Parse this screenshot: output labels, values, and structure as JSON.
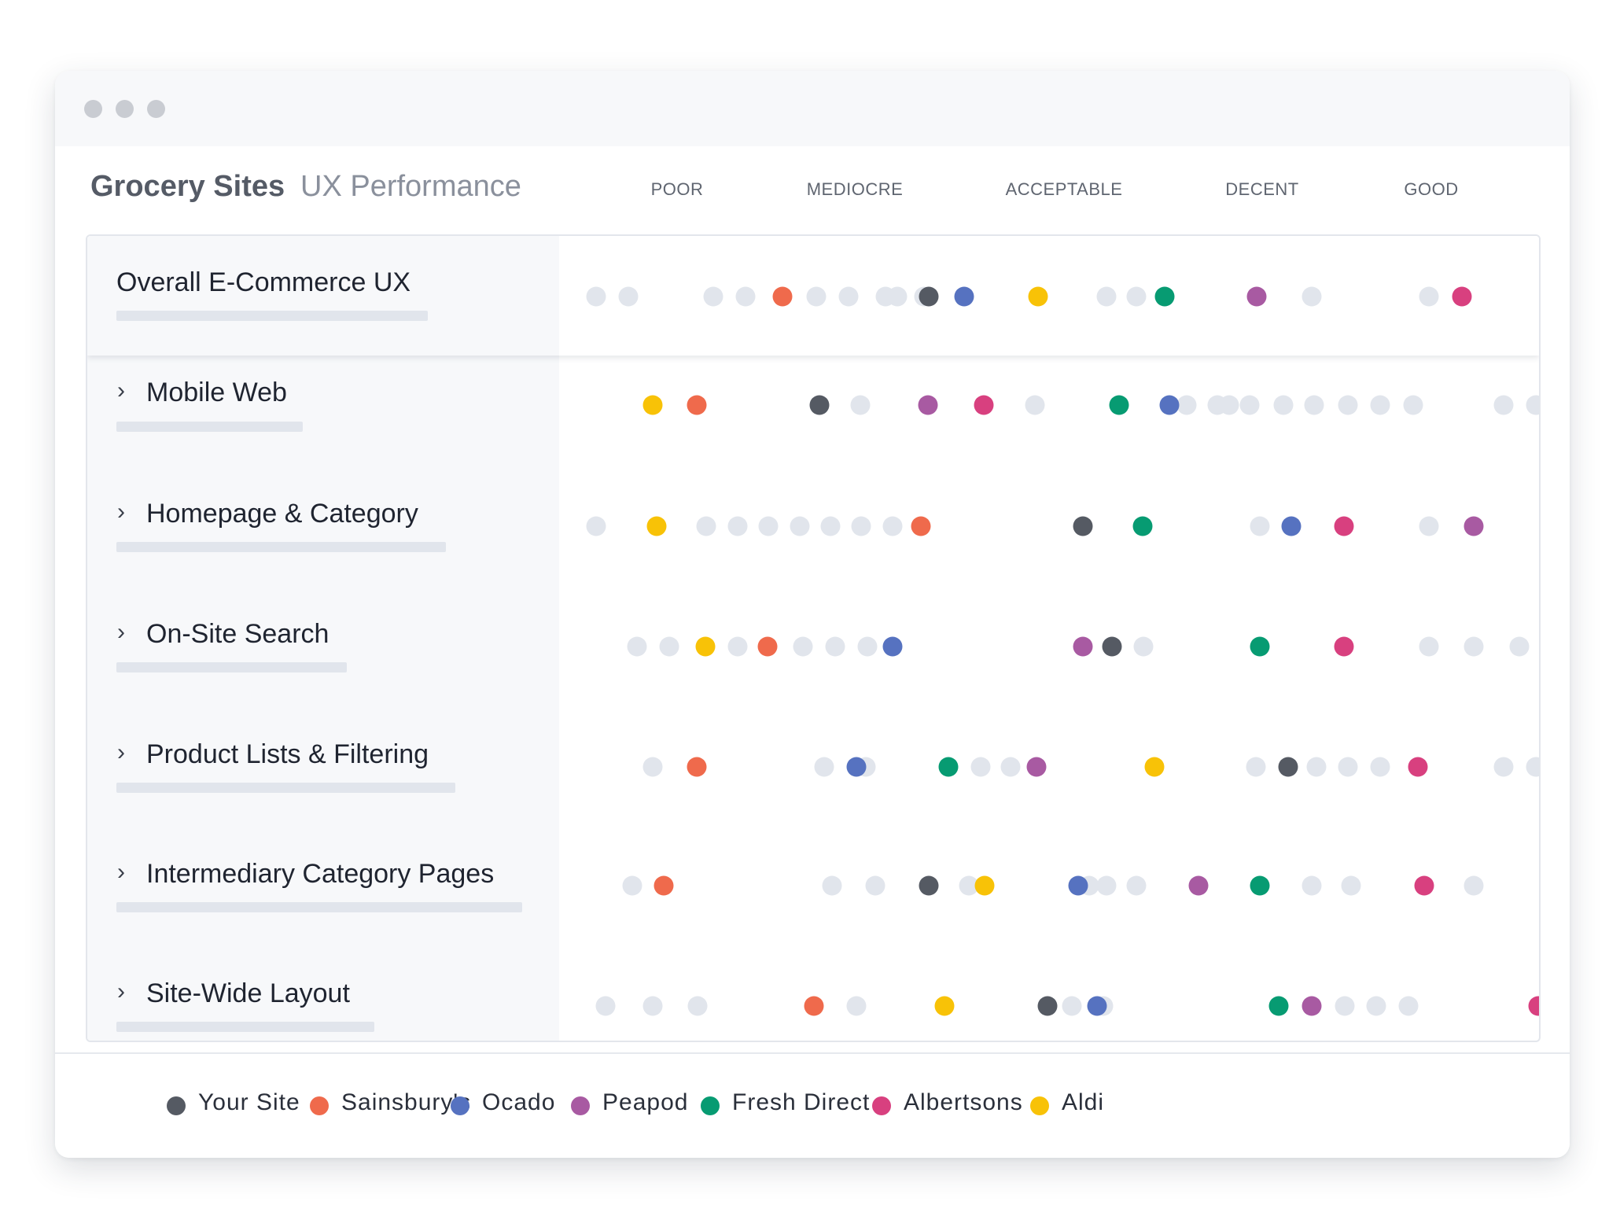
{
  "window": {
    "controls": [
      "close",
      "minimize",
      "zoom"
    ]
  },
  "header": {
    "title_main": "Grocery Sites",
    "title_sub": "UX Performance"
  },
  "chart_data": {
    "type": "scatter",
    "title": "Grocery Sites UX Performance",
    "scale": [
      "POOR",
      "MEDIOCRE",
      "ACCEPTABLE",
      "DECENT",
      "GOOD"
    ],
    "rows": [
      {
        "label": "Overall E-Commerce UX",
        "expandable": false,
        "series": {
          "Your Site": 0.351,
          "Sainsbury's": 0.197,
          "Ocado": 0.388,
          "Peapod": 0.697,
          "Fresh Direct": 0.6,
          "Albertsons": 0.914,
          "Aldi": 0.466
        },
        "others": [
          0.0,
          0.034,
          0.124,
          0.158,
          0.232,
          0.266,
          0.305,
          0.318,
          0.346,
          0.539,
          0.57,
          0.6,
          0.755,
          0.879
        ]
      },
      {
        "label": "Mobile Web",
        "expandable": true,
        "series": {
          "Your Site": 0.236,
          "Sainsbury's": 0.106,
          "Ocado": 0.605,
          "Peapod": 0.35,
          "Fresh Direct": 0.552,
          "Albertsons": 0.409,
          "Aldi": 0.06
        },
        "others": [
          0.279,
          0.463,
          0.623,
          0.656,
          0.668,
          0.69,
          0.725,
          0.758,
          0.793,
          0.827,
          0.862,
          0.958,
          0.992
        ]
      },
      {
        "label": "Homepage & Category",
        "expandable": true,
        "series": {
          "Your Site": 0.514,
          "Sainsbury's": 0.343,
          "Ocado": 0.734,
          "Peapod": 0.926,
          "Fresh Direct": 0.577,
          "Albertsons": 0.789,
          "Aldi": 0.064
        },
        "others": [
          0.0,
          0.116,
          0.149,
          0.182,
          0.215,
          0.247,
          0.28,
          0.313,
          0.7,
          0.879
        ]
      },
      {
        "label": "On-Site Search",
        "expandable": true,
        "series": {
          "Your Site": 0.544,
          "Sainsbury's": 0.181,
          "Ocado": 0.313,
          "Peapod": 0.514,
          "Fresh Direct": 0.7,
          "Albertsons": 0.789,
          "Aldi": 0.115
        },
        "others": [
          0.043,
          0.077,
          0.149,
          0.218,
          0.252,
          0.286,
          0.578,
          0.879,
          0.926,
          0.974
        ]
      },
      {
        "label": "Product Lists & Filtering",
        "expandable": true,
        "series": {
          "Your Site": 0.73,
          "Sainsbury's": 0.106,
          "Ocado": 0.275,
          "Peapod": 0.465,
          "Fresh Direct": 0.372,
          "Albertsons": 0.867,
          "Aldi": 0.589
        },
        "others": [
          0.06,
          0.241,
          0.285,
          0.406,
          0.437,
          0.696,
          0.76,
          0.793,
          0.827,
          0.958,
          0.992
        ]
      },
      {
        "label": "Intermediary Category Pages",
        "expandable": true,
        "series": {
          "Your Site": 0.351,
          "Sainsbury's": 0.071,
          "Ocado": 0.509,
          "Peapod": 0.636,
          "Fresh Direct": 0.7,
          "Albertsons": 0.874,
          "Aldi": 0.41
        },
        "others": [
          0.038,
          0.249,
          0.295,
          0.393,
          0.52,
          0.539,
          0.57,
          0.755,
          0.797,
          0.926
        ]
      },
      {
        "label": "Site-Wide Layout",
        "expandable": true,
        "series": {
          "Your Site": 0.476,
          "Sainsbury's": 0.23,
          "Ocado": 0.529,
          "Peapod": 0.755,
          "Fresh Direct": 0.72,
          "Albertsons": 0.994,
          "Aldi": 0.368
        },
        "others": [
          0.01,
          0.06,
          0.107,
          0.275,
          0.502,
          0.535,
          0.79,
          0.823,
          0.857
        ]
      }
    ],
    "legend": [
      "Your Site",
      "Sainsbury's",
      "Ocado",
      "Peapod",
      "Fresh Direct",
      "Albertsons",
      "Aldi"
    ],
    "colors": {
      "Your Site": "#555a63",
      "Sainsbury's": "#ef6a4c",
      "Ocado": "#5672c0",
      "Peapod": "#a85aa2",
      "Fresh Direct": "#079b72",
      "Albertsons": "#d8407f",
      "Aldi": "#f8c207",
      "other": "#e1e5ec"
    },
    "legend_placement": "bottom"
  }
}
